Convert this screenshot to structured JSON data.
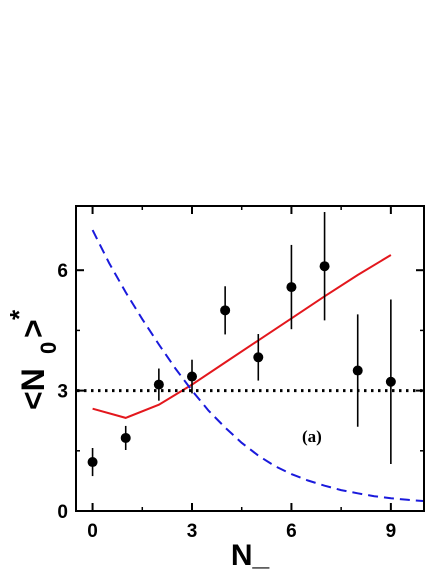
{
  "chart_data": {
    "type": "line",
    "xlabel": "N_",
    "ylabel_main": "<N",
    "ylabel_sub": "0",
    "ylabel_close": ">",
    "ylabel_sup": "*",
    "annotation": "(a)",
    "xlim": [
      -0.5,
      10
    ],
    "ylim": [
      0,
      7.6
    ],
    "xticks": [
      0,
      3,
      6,
      9
    ],
    "yticks": [
      0,
      3,
      6
    ],
    "xminor": [
      1.5,
      4.5,
      7.5
    ],
    "yminor": [
      1.5,
      4.5
    ],
    "grid": false,
    "legend": "none",
    "series": [
      {
        "kind": "points",
        "color": "#000000",
        "x": [
          0,
          1,
          2,
          3,
          4,
          5,
          6,
          7,
          8,
          9
        ],
        "y": [
          1.22,
          1.82,
          3.15,
          3.35,
          5.0,
          3.83,
          5.58,
          6.1,
          3.5,
          3.22
        ],
        "err": [
          0.35,
          0.3,
          0.4,
          0.42,
          0.6,
          0.58,
          1.05,
          1.35,
          1.4,
          2.05
        ]
      },
      {
        "kind": "line",
        "color": "#e3171d",
        "style": "solid",
        "x": [
          0,
          1,
          2,
          3,
          4,
          5,
          6,
          7,
          8,
          9
        ],
        "y": [
          2.55,
          2.32,
          2.65,
          3.15,
          3.7,
          4.25,
          4.8,
          5.35,
          5.88,
          6.38
        ]
      },
      {
        "kind": "line",
        "color": "#1a1adc",
        "style": "dashed",
        "x": [
          0,
          0.5,
          1,
          1.5,
          2,
          2.5,
          3,
          3.5,
          4,
          4.5,
          5,
          5.5,
          6,
          6.5,
          7,
          7.5,
          8,
          8.5,
          9,
          9.5,
          10
        ],
        "y": [
          7.0,
          6.18,
          5.45,
          4.78,
          4.15,
          3.55,
          3.0,
          2.5,
          2.08,
          1.7,
          1.38,
          1.12,
          0.92,
          0.76,
          0.63,
          0.52,
          0.44,
          0.37,
          0.32,
          0.28,
          0.25
        ]
      },
      {
        "kind": "hline",
        "color": "#000000",
        "style": "dotted",
        "y": 3
      }
    ]
  }
}
